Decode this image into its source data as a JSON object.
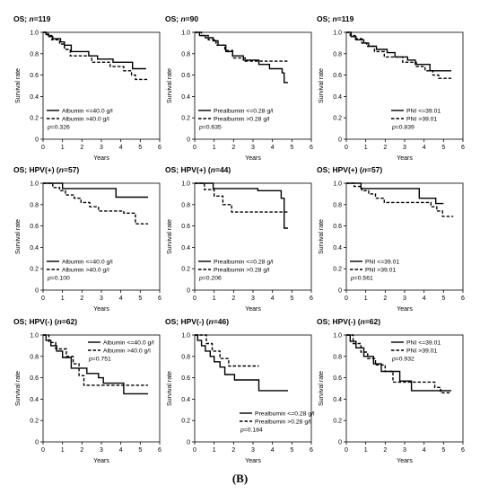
{
  "figure_label": "(B)",
  "chart_data": [
    {
      "type": "line",
      "title_prefix": "OS; ",
      "title_italic": "n",
      "title_suffix": "=119",
      "xlabel": "Years",
      "ylabel": "Survival rate",
      "xlim": [
        0,
        6
      ],
      "ylim": [
        0,
        1
      ],
      "xticks": [
        0,
        1,
        2,
        3,
        4,
        5,
        6
      ],
      "yticks": [
        0,
        0.2,
        0.4,
        0.6,
        0.8,
        1.0
      ],
      "ytick_labels": [
        "0",
        "0.2",
        "0.4",
        "0.6",
        "0.8",
        "1.0"
      ],
      "legend_position": "bottom-left",
      "pvalue": "0.326",
      "series": [
        {
          "name": "Albumin <=40.0 g/l",
          "style": "solid",
          "steps": [
            [
              0,
              1.0
            ],
            [
              0.15,
              0.98
            ],
            [
              0.3,
              0.96
            ],
            [
              0.5,
              0.94
            ],
            [
              0.9,
              0.91
            ],
            [
              1.1,
              0.88
            ],
            [
              1.45,
              0.82
            ],
            [
              2.35,
              0.78
            ],
            [
              2.8,
              0.75
            ],
            [
              3.6,
              0.72
            ],
            [
              4.6,
              0.66
            ],
            [
              5.3,
              0.66
            ]
          ]
        },
        {
          "name": "Albumin >40.0 g/l",
          "style": "dashed",
          "steps": [
            [
              0,
              1.0
            ],
            [
              0.25,
              0.97
            ],
            [
              0.45,
              0.93
            ],
            [
              0.85,
              0.89
            ],
            [
              1.1,
              0.84
            ],
            [
              1.4,
              0.78
            ],
            [
              2.5,
              0.72
            ],
            [
              3.45,
              0.68
            ],
            [
              4.15,
              0.64
            ],
            [
              4.55,
              0.6
            ],
            [
              4.75,
              0.56
            ],
            [
              5.4,
              0.56
            ]
          ]
        }
      ]
    },
    {
      "type": "line",
      "title_prefix": "OS; ",
      "title_italic": "n",
      "title_suffix": "=90",
      "xlabel": "Years",
      "ylabel": "Survival rate",
      "xlim": [
        0,
        6
      ],
      "ylim": [
        0,
        1
      ],
      "xticks": [
        0,
        1,
        2,
        3,
        4,
        5,
        6
      ],
      "yticks": [
        0,
        0.2,
        0.4,
        0.6,
        0.8,
        1.0
      ],
      "ytick_labels": [
        "0",
        "0.2",
        "0.4",
        "0.6",
        "0.8",
        "1.0"
      ],
      "legend_position": "bottom-left",
      "pvalue": "0.635",
      "series": [
        {
          "name": "Prealbumin <=0.28 g/l",
          "style": "solid",
          "steps": [
            [
              0,
              1.0
            ],
            [
              0.25,
              0.97
            ],
            [
              0.55,
              0.95
            ],
            [
              0.95,
              0.92
            ],
            [
              1.2,
              0.88
            ],
            [
              1.6,
              0.82
            ],
            [
              1.95,
              0.78
            ],
            [
              2.5,
              0.74
            ],
            [
              3.3,
              0.7
            ],
            [
              3.85,
              0.66
            ],
            [
              4.5,
              0.62
            ],
            [
              4.6,
              0.53
            ],
            [
              4.8,
              0.53
            ]
          ]
        },
        {
          "name": "Prealbumin >0.28 g/l",
          "style": "dashed",
          "steps": [
            [
              0,
              1.0
            ],
            [
              0.35,
              0.97
            ],
            [
              0.7,
              0.93
            ],
            [
              1.1,
              0.88
            ],
            [
              1.55,
              0.83
            ],
            [
              1.95,
              0.76
            ],
            [
              2.6,
              0.73
            ],
            [
              4.8,
              0.73
            ]
          ]
        }
      ]
    },
    {
      "type": "line",
      "title_prefix": "OS; ",
      "title_italic": "n",
      "title_suffix": "=119",
      "xlabel": "Years",
      "ylabel": "Survival rate",
      "xlim": [
        0,
        6
      ],
      "ylim": [
        0,
        1
      ],
      "xticks": [
        0,
        1,
        2,
        3,
        4,
        5,
        6
      ],
      "yticks": [
        0,
        0.2,
        0.4,
        0.6,
        0.8,
        1.0
      ],
      "ytick_labels": [
        "0",
        "0.2",
        "0.4",
        "0.6",
        "0.8",
        "1.0"
      ],
      "legend_position": "bottom-right",
      "pvalue": "0.839",
      "series": [
        {
          "name": "PNI <=39.01",
          "style": "solid",
          "steps": [
            [
              0,
              1.0
            ],
            [
              0.25,
              0.96
            ],
            [
              0.5,
              0.93
            ],
            [
              0.9,
              0.9
            ],
            [
              1.15,
              0.87
            ],
            [
              1.55,
              0.84
            ],
            [
              2.1,
              0.81
            ],
            [
              2.5,
              0.77
            ],
            [
              3.15,
              0.74
            ],
            [
              3.55,
              0.7
            ],
            [
              4.3,
              0.64
            ],
            [
              5.4,
              0.64
            ]
          ]
        },
        {
          "name": "PNI >39.01",
          "style": "dashed",
          "steps": [
            [
              0,
              1.0
            ],
            [
              0.2,
              0.97
            ],
            [
              0.45,
              0.94
            ],
            [
              0.8,
              0.9
            ],
            [
              1.05,
              0.87
            ],
            [
              1.45,
              0.82
            ],
            [
              1.95,
              0.77
            ],
            [
              2.9,
              0.72
            ],
            [
              3.6,
              0.68
            ],
            [
              4.05,
              0.64
            ],
            [
              4.45,
              0.6
            ],
            [
              4.75,
              0.57
            ],
            [
              5.4,
              0.57
            ]
          ]
        }
      ]
    },
    {
      "type": "line",
      "title_prefix": "OS; HPV(+) (",
      "title_italic": "n",
      "title_suffix": "=57)",
      "xlabel": "Years",
      "ylabel": "Survival rate",
      "xlim": [
        0,
        6
      ],
      "ylim": [
        0,
        1
      ],
      "xticks": [
        0,
        1,
        2,
        3,
        4,
        5,
        6
      ],
      "yticks": [
        0,
        0.2,
        0.4,
        0.6,
        0.8,
        1.0
      ],
      "ytick_labels": [
        "0",
        "0.2",
        "0.4",
        "0.6",
        "0.8",
        "1.0"
      ],
      "legend_position": "bottom-left",
      "pvalue": "0.100",
      "series": [
        {
          "name": "Albumin <=40.0 g/l",
          "style": "solid",
          "steps": [
            [
              0,
              1.0
            ],
            [
              1.0,
              0.95
            ],
            [
              3.75,
              0.87
            ],
            [
              5.4,
              0.87
            ]
          ]
        },
        {
          "name": "Albumin >40.0 g/l",
          "style": "dashed",
          "steps": [
            [
              0,
              1.0
            ],
            [
              0.5,
              0.96
            ],
            [
              0.85,
              0.93
            ],
            [
              1.15,
              0.89
            ],
            [
              1.6,
              0.86
            ],
            [
              1.95,
              0.82
            ],
            [
              2.4,
              0.78
            ],
            [
              2.85,
              0.74
            ],
            [
              4.15,
              0.72
            ],
            [
              4.75,
              0.62
            ],
            [
              5.4,
              0.62
            ]
          ]
        }
      ]
    },
    {
      "type": "line",
      "title_prefix": "OS; HPV(+) (",
      "title_italic": "n",
      "title_suffix": "=44)",
      "xlabel": "Years",
      "ylabel": "Survival rate",
      "xlim": [
        0,
        6
      ],
      "ylim": [
        0,
        1
      ],
      "xticks": [
        0,
        1,
        2,
        3,
        4,
        5,
        6
      ],
      "yticks": [
        0,
        0.2,
        0.4,
        0.6,
        0.8,
        1.0
      ],
      "ytick_labels": [
        "0",
        "0.2",
        "0.4",
        "0.6",
        "0.8",
        "1.0"
      ],
      "legend_position": "bottom-left",
      "pvalue": "0.206",
      "series": [
        {
          "name": "Prealbumin <=0.28 g/l",
          "style": "solid",
          "steps": [
            [
              0,
              1.0
            ],
            [
              0.95,
              0.95
            ],
            [
              3.25,
              0.93
            ],
            [
              4.45,
              0.86
            ],
            [
              4.6,
              0.58
            ],
            [
              4.8,
              0.58
            ]
          ]
        },
        {
          "name": "Prealbumin >0.28 g/l",
          "style": "dashed",
          "steps": [
            [
              0,
              1.0
            ],
            [
              0.5,
              0.94
            ],
            [
              1.0,
              0.88
            ],
            [
              1.45,
              0.8
            ],
            [
              1.9,
              0.73
            ],
            [
              4.8,
              0.73
            ]
          ]
        }
      ]
    },
    {
      "type": "line",
      "title_prefix": "OS; HPV(+) (",
      "title_italic": "n",
      "title_suffix": "=57)",
      "xlabel": "Years",
      "ylabel": "Survival rate",
      "xlim": [
        0,
        6
      ],
      "ylim": [
        0,
        1
      ],
      "xticks": [
        0,
        1,
        2,
        3,
        4,
        5,
        6
      ],
      "yticks": [
        0,
        0.2,
        0.4,
        0.6,
        0.8,
        1.0
      ],
      "ytick_labels": [
        "0",
        "0.2",
        "0.4",
        "0.6",
        "0.8",
        "1.0"
      ],
      "legend_position": "bottom-left",
      "pvalue": "0.561",
      "series": [
        {
          "name": "PNI <=39.01",
          "style": "solid",
          "steps": [
            [
              0,
              1.0
            ],
            [
              0.75,
              0.95
            ],
            [
              3.75,
              0.86
            ],
            [
              4.6,
              0.81
            ],
            [
              5.0,
              0.81
            ]
          ]
        },
        {
          "name": "PNI >39.01",
          "style": "dashed",
          "steps": [
            [
              0,
              1.0
            ],
            [
              0.4,
              0.97
            ],
            [
              0.8,
              0.93
            ],
            [
              1.15,
              0.9
            ],
            [
              1.5,
              0.86
            ],
            [
              1.95,
              0.82
            ],
            [
              4.35,
              0.78
            ],
            [
              4.65,
              0.74
            ],
            [
              4.95,
              0.69
            ],
            [
              5.5,
              0.69
            ]
          ]
        }
      ]
    },
    {
      "type": "line",
      "title_prefix": "OS; HPV(-) (",
      "title_italic": "n",
      "title_suffix": "=62)",
      "xlabel": "Years",
      "ylabel": "Survival rate",
      "xlim": [
        0,
        6
      ],
      "ylim": [
        0,
        1
      ],
      "xticks": [
        0,
        1,
        2,
        3,
        4,
        5,
        6
      ],
      "yticks": [
        0,
        0.2,
        0.4,
        0.6,
        0.8,
        1.0
      ],
      "ytick_labels": [
        "0",
        "0.2",
        "0.4",
        "0.6",
        "0.8",
        "1.0"
      ],
      "legend_position": "top-right",
      "pvalue": "0.751",
      "series": [
        {
          "name": "Albumin <=40.0 g/l",
          "style": "solid",
          "steps": [
            [
              0,
              1.0
            ],
            [
              0.15,
              0.95
            ],
            [
              0.4,
              0.9
            ],
            [
              0.7,
              0.85
            ],
            [
              1.0,
              0.79
            ],
            [
              1.45,
              0.69
            ],
            [
              2.25,
              0.64
            ],
            [
              2.85,
              0.6
            ],
            [
              3.1,
              0.55
            ],
            [
              4.15,
              0.45
            ],
            [
              5.4,
              0.45
            ]
          ]
        },
        {
          "name": "Albumin >40.0 g/l",
          "style": "dashed",
          "steps": [
            [
              0,
              1.0
            ],
            [
              0.3,
              0.93
            ],
            [
              0.65,
              0.87
            ],
            [
              1.2,
              0.8
            ],
            [
              1.55,
              0.73
            ],
            [
              1.85,
              0.62
            ],
            [
              2.1,
              0.53
            ],
            [
              5.4,
              0.53
            ]
          ]
        }
      ]
    },
    {
      "type": "line",
      "title_prefix": "OS; HPV(-) (",
      "title_italic": "n",
      "title_suffix": "=46)",
      "xlabel": "Years",
      "ylabel": "Survival rate",
      "xlim": [
        0,
        6
      ],
      "ylim": [
        0,
        1
      ],
      "xticks": [
        0,
        1,
        2,
        3,
        4,
        5,
        6
      ],
      "yticks": [
        0,
        0.2,
        0.4,
        0.6,
        0.8,
        1.0
      ],
      "ytick_labels": [
        "0",
        "0.2",
        "0.4",
        "0.6",
        "0.8",
        "1.0"
      ],
      "legend_position": "bottom-right",
      "pvalue": "0.184",
      "series": [
        {
          "name": "Prealbumin <=0.28 g/l",
          "style": "solid",
          "steps": [
            [
              0,
              1.0
            ],
            [
              0.15,
              0.95
            ],
            [
              0.35,
              0.9
            ],
            [
              0.55,
              0.85
            ],
            [
              0.8,
              0.8
            ],
            [
              1.0,
              0.75
            ],
            [
              1.3,
              0.7
            ],
            [
              1.55,
              0.63
            ],
            [
              2.05,
              0.58
            ],
            [
              3.3,
              0.48
            ],
            [
              4.8,
              0.48
            ]
          ]
        },
        {
          "name": "Prealbumin >0.28 g/l",
          "style": "dashed",
          "steps": [
            [
              0,
              1.0
            ],
            [
              0.6,
              0.92
            ],
            [
              0.9,
              0.85
            ],
            [
              1.3,
              0.78
            ],
            [
              1.75,
              0.71
            ],
            [
              3.3,
              0.71
            ]
          ]
        }
      ]
    },
    {
      "type": "line",
      "title_prefix": "OS; HPV(-) (",
      "title_italic": "n",
      "title_suffix": "=62)",
      "xlabel": "Years",
      "ylabel": "Survival rate",
      "xlim": [
        0,
        6
      ],
      "ylim": [
        0,
        1
      ],
      "xticks": [
        0,
        1,
        2,
        3,
        4,
        5,
        6
      ],
      "yticks": [
        0,
        0.2,
        0.4,
        0.6,
        0.8,
        1.0
      ],
      "ytick_labels": [
        "0",
        "0.2",
        "0.4",
        "0.6",
        "0.8",
        "1.0"
      ],
      "legend_position": "top-right",
      "pvalue": "0.932",
      "series": [
        {
          "name": "PNI <=39.01",
          "style": "solid",
          "steps": [
            [
              0,
              1.0
            ],
            [
              0.2,
              0.94
            ],
            [
              0.5,
              0.88
            ],
            [
              0.9,
              0.8
            ],
            [
              1.4,
              0.73
            ],
            [
              1.8,
              0.66
            ],
            [
              2.75,
              0.57
            ],
            [
              3.35,
              0.48
            ],
            [
              5.4,
              0.48
            ]
          ]
        },
        {
          "name": "PNI >39.01",
          "style": "dashed",
          "steps": [
            [
              0,
              1.0
            ],
            [
              0.35,
              0.92
            ],
            [
              0.75,
              0.84
            ],
            [
              1.1,
              0.78
            ],
            [
              1.5,
              0.72
            ],
            [
              2.0,
              0.66
            ],
            [
              2.4,
              0.56
            ],
            [
              4.55,
              0.51
            ],
            [
              4.85,
              0.46
            ],
            [
              5.4,
              0.46
            ]
          ]
        }
      ]
    }
  ]
}
